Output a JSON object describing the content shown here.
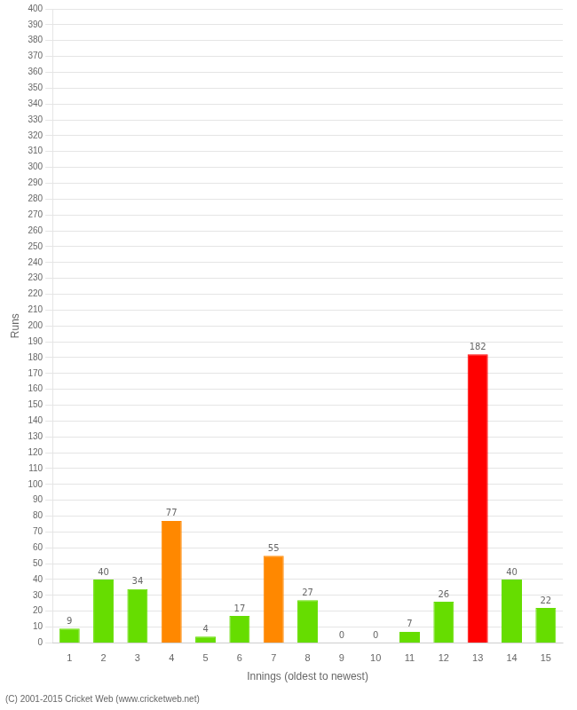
{
  "chart_data": {
    "type": "bar",
    "xlabel": "Innings (oldest to newest)",
    "ylabel": "Runs",
    "categories": [
      "1",
      "2",
      "3",
      "4",
      "5",
      "6",
      "7",
      "8",
      "9",
      "10",
      "11",
      "12",
      "13",
      "14",
      "15"
    ],
    "values": [
      9,
      40,
      34,
      77,
      4,
      17,
      55,
      27,
      0,
      0,
      7,
      26,
      182,
      40,
      22
    ],
    "colors": [
      "#66dd00",
      "#66dd00",
      "#66dd00",
      "#ff8800",
      "#66dd00",
      "#66dd00",
      "#ff8800",
      "#66dd00",
      "#66dd00",
      "#66dd00",
      "#66dd00",
      "#66dd00",
      "#ff0000",
      "#66dd00",
      "#66dd00"
    ],
    "ylim": [
      0,
      400
    ],
    "yticks": [
      0,
      10,
      20,
      30,
      40,
      50,
      60,
      70,
      80,
      90,
      100,
      110,
      120,
      130,
      140,
      150,
      160,
      170,
      180,
      190,
      200,
      210,
      220,
      230,
      240,
      250,
      260,
      270,
      280,
      290,
      300,
      310,
      320,
      330,
      340,
      350,
      360,
      370,
      380,
      390,
      400
    ],
    "grid": true,
    "data_labels": true,
    "annotations": [
      "(C) 2001-2015 Cricket Web (www.cricketweb.net)"
    ]
  }
}
